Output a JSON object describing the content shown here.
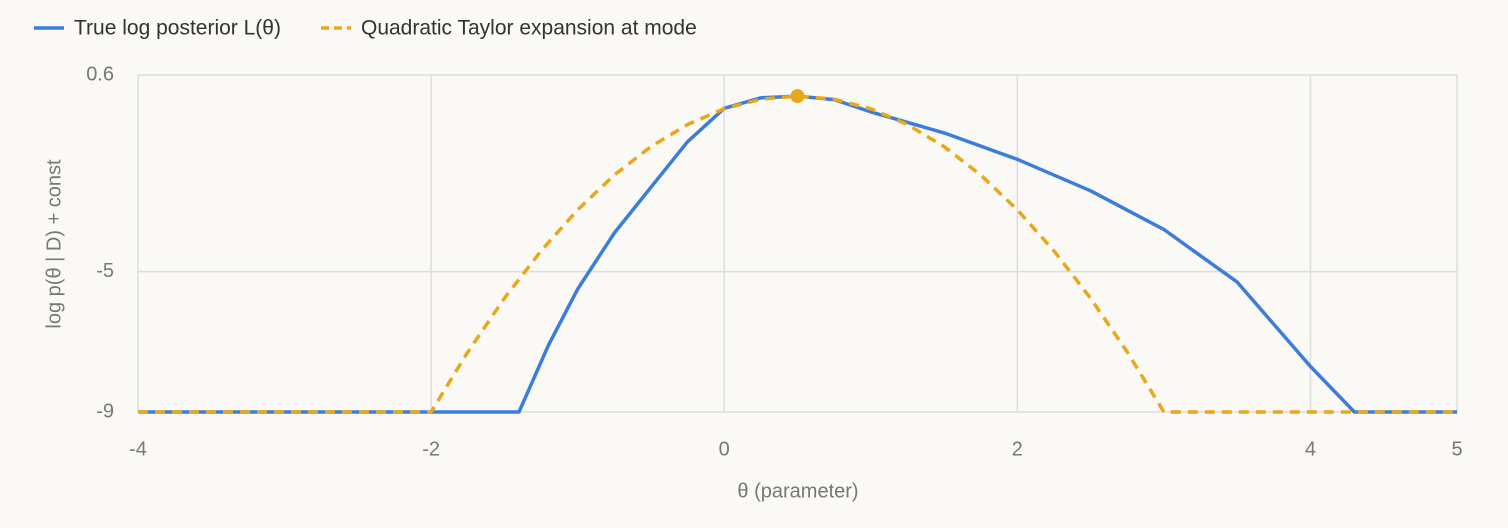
{
  "chart_data": {
    "type": "line",
    "xlabel": "θ (parameter)",
    "ylabel": "log p(θ | D) + const",
    "xlim": [
      -4,
      5
    ],
    "xticks": [
      -4,
      -2,
      0,
      2,
      4,
      5
    ],
    "ylim": [
      -9,
      0.6
    ],
    "yticks": [
      -9,
      -5,
      0.6
    ],
    "grid": true,
    "legend": "top-left",
    "series": [
      {
        "name": "True log posterior L(θ)",
        "color": "#3b7dd8",
        "dash": false,
        "x": [
          -4,
          -1.4,
          -1.2,
          -1,
          -0.75,
          -0.5,
          -0.25,
          0,
          0.25,
          0.5,
          0.75,
          1,
          1.5,
          2,
          2.5,
          3,
          3.5,
          4,
          4.3,
          5
        ],
        "values": [
          -9,
          -9,
          -7.1,
          -5.5,
          -3.9,
          -2.6,
          -1.3,
          -0.35,
          -0.05,
          0,
          -0.1,
          -0.45,
          -1.05,
          -1.8,
          -2.7,
          -3.8,
          -5.3,
          -7.7,
          -9,
          -9
        ]
      },
      {
        "name": "Quadratic Taylor expansion at mode",
        "color": "#e8a71c",
        "dash": true,
        "x": [
          -4,
          -2,
          -1.75,
          -1.5,
          -1.25,
          -1,
          -0.75,
          -0.5,
          -0.25,
          0,
          0.25,
          0.5,
          0.75,
          1,
          1.25,
          1.5,
          1.75,
          2,
          2.25,
          2.5,
          2.75,
          3,
          5
        ],
        "values": [
          -9,
          -9,
          -7.29,
          -5.76,
          -4.41,
          -3.24,
          -2.25,
          -1.44,
          -0.81,
          -0.36,
          -0.09,
          0,
          -0.09,
          -0.36,
          -0.81,
          -1.44,
          -2.25,
          -3.24,
          -4.41,
          -5.76,
          -7.29,
          -9,
          -9
        ]
      }
    ],
    "mode_point": {
      "x": 0.5,
      "y": 0,
      "color": "#e8a71c"
    }
  }
}
